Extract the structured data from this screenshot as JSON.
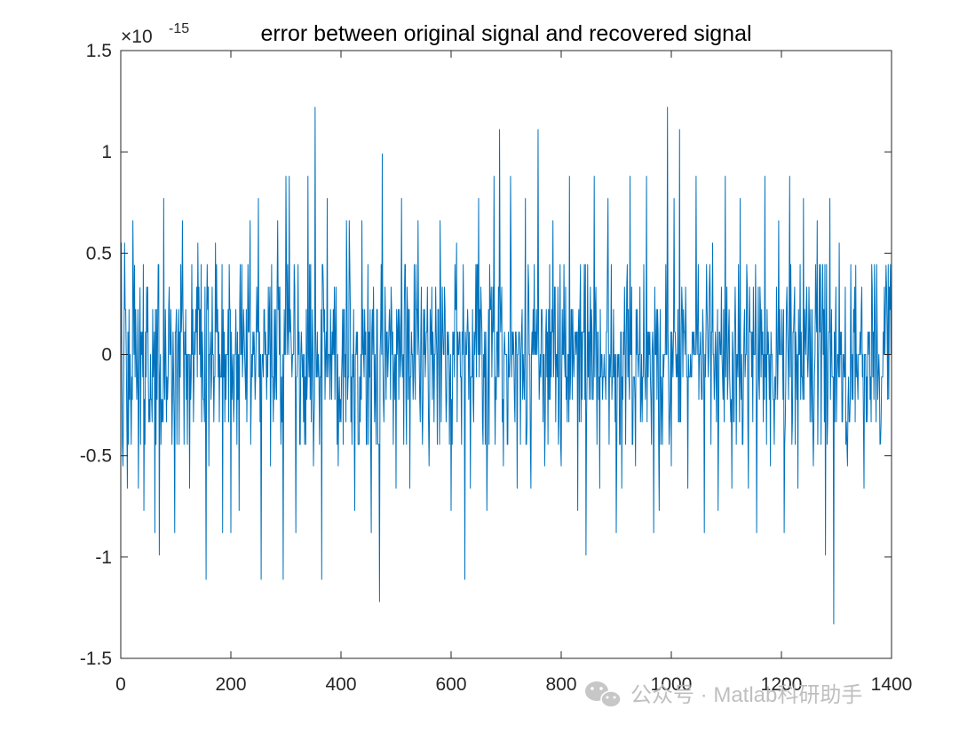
{
  "chart_data": {
    "type": "line",
    "title": "error between original signal and recovered signal",
    "xlabel": "",
    "ylabel": "",
    "xlim": [
      0,
      1400
    ],
    "ylim": [
      -1.5,
      1.5
    ],
    "y_exponent_label": "×10",
    "y_exponent_power": "-15",
    "x_ticks": [
      0,
      200,
      400,
      600,
      800,
      1000,
      1200,
      1400
    ],
    "x_tick_labels": [
      "0",
      "200",
      "400",
      "600",
      "800",
      "1000",
      "1200",
      "1400"
    ],
    "y_ticks": [
      -1.5,
      -1,
      -0.5,
      0,
      0.5,
      1,
      1.5
    ],
    "y_tick_labels": [
      "-1.5",
      "-1",
      "-0.5",
      "0",
      "0.5",
      "1",
      "1.5"
    ],
    "grid": false,
    "series": [
      {
        "color": "#0072BD",
        "seed": 20240517,
        "n_points": 1400,
        "quantum": 0.111,
        "spikes": [
          {
            "x": 1,
            "y": 0.55
          },
          {
            "x": 4,
            "y": -0.55
          },
          {
            "x": 7,
            "y": 0.55
          },
          {
            "x": 12,
            "y": -0.66
          },
          {
            "x": 22,
            "y": 0.66
          },
          {
            "x": 25,
            "y": 0.44
          },
          {
            "x": 32,
            "y": -0.66
          },
          {
            "x": 35,
            "y": 0.33
          },
          {
            "x": 42,
            "y": -0.77
          },
          {
            "x": 62,
            "y": -0.88
          },
          {
            "x": 70,
            "y": -0.99
          },
          {
            "x": 78,
            "y": 0.77
          },
          {
            "x": 98,
            "y": -0.88
          },
          {
            "x": 112,
            "y": 0.66
          },
          {
            "x": 125,
            "y": -0.66
          },
          {
            "x": 140,
            "y": 0.55
          },
          {
            "x": 155,
            "y": -1.11
          },
          {
            "x": 160,
            "y": -0.55
          },
          {
            "x": 172,
            "y": 0.55
          },
          {
            "x": 185,
            "y": -0.88
          },
          {
            "x": 200,
            "y": -0.88
          },
          {
            "x": 215,
            "y": -0.77
          },
          {
            "x": 235,
            "y": 0.66
          },
          {
            "x": 250,
            "y": 0.77
          },
          {
            "x": 255,
            "y": -1.11
          },
          {
            "x": 272,
            "y": -0.55
          },
          {
            "x": 285,
            "y": 0.66
          },
          {
            "x": 295,
            "y": -1.11
          },
          {
            "x": 300,
            "y": 0.88
          },
          {
            "x": 306,
            "y": 0.88
          },
          {
            "x": 318,
            "y": -0.88
          },
          {
            "x": 340,
            "y": 0.88
          },
          {
            "x": 350,
            "y": -0.55
          },
          {
            "x": 353,
            "y": 1.22
          },
          {
            "x": 365,
            "y": -1.11
          },
          {
            "x": 375,
            "y": 0.77
          },
          {
            "x": 395,
            "y": -0.55
          },
          {
            "x": 410,
            "y": 0.66
          },
          {
            "x": 415,
            "y": 0.66
          },
          {
            "x": 425,
            "y": -0.77
          },
          {
            "x": 438,
            "y": 0.66
          },
          {
            "x": 455,
            "y": -0.88
          },
          {
            "x": 470,
            "y": -1.22
          },
          {
            "x": 475,
            "y": 0.99
          },
          {
            "x": 500,
            "y": -0.66
          },
          {
            "x": 510,
            "y": 0.77
          },
          {
            "x": 525,
            "y": -0.66
          },
          {
            "x": 540,
            "y": 0.66
          },
          {
            "x": 560,
            "y": -0.55
          },
          {
            "x": 580,
            "y": 0.66
          },
          {
            "x": 600,
            "y": -0.77
          },
          {
            "x": 610,
            "y": 0.55
          },
          {
            "x": 625,
            "y": -1.11
          },
          {
            "x": 635,
            "y": -0.66
          },
          {
            "x": 650,
            "y": 0.77
          },
          {
            "x": 665,
            "y": -0.77
          },
          {
            "x": 678,
            "y": 0.88
          },
          {
            "x": 688,
            "y": 1.11
          },
          {
            "x": 695,
            "y": -0.55
          },
          {
            "x": 708,
            "y": 0.88
          },
          {
            "x": 720,
            "y": -0.66
          },
          {
            "x": 735,
            "y": 0.77
          },
          {
            "x": 745,
            "y": -0.66
          },
          {
            "x": 758,
            "y": 1.11
          },
          {
            "x": 770,
            "y": -0.55
          },
          {
            "x": 785,
            "y": 0.66
          },
          {
            "x": 800,
            "y": -0.55
          },
          {
            "x": 815,
            "y": 0.88
          },
          {
            "x": 830,
            "y": -0.77
          },
          {
            "x": 845,
            "y": -0.99
          },
          {
            "x": 860,
            "y": 0.88
          },
          {
            "x": 870,
            "y": -0.66
          },
          {
            "x": 885,
            "y": 0.77
          },
          {
            "x": 900,
            "y": -0.88
          },
          {
            "x": 910,
            "y": -0.66
          },
          {
            "x": 925,
            "y": 0.88
          },
          {
            "x": 935,
            "y": -0.55
          },
          {
            "x": 955,
            "y": 0.88
          },
          {
            "x": 968,
            "y": -0.88
          },
          {
            "x": 978,
            "y": -0.77
          },
          {
            "x": 993,
            "y": 1.22
          },
          {
            "x": 1000,
            "y": -0.55
          },
          {
            "x": 1005,
            "y": 0.77
          },
          {
            "x": 1015,
            "y": 1.11
          },
          {
            "x": 1030,
            "y": -0.66
          },
          {
            "x": 1045,
            "y": 0.88
          },
          {
            "x": 1060,
            "y": -0.88
          },
          {
            "x": 1075,
            "y": 0.55
          },
          {
            "x": 1085,
            "y": -0.77
          },
          {
            "x": 1098,
            "y": 0.88
          },
          {
            "x": 1110,
            "y": -0.66
          },
          {
            "x": 1125,
            "y": 0.77
          },
          {
            "x": 1140,
            "y": -0.66
          },
          {
            "x": 1155,
            "y": -0.88
          },
          {
            "x": 1170,
            "y": 0.88
          },
          {
            "x": 1180,
            "y": -0.55
          },
          {
            "x": 1195,
            "y": 0.66
          },
          {
            "x": 1205,
            "y": -0.88
          },
          {
            "x": 1215,
            "y": 0.88
          },
          {
            "x": 1230,
            "y": -0.66
          },
          {
            "x": 1240,
            "y": 0.77
          },
          {
            "x": 1258,
            "y": -0.55
          },
          {
            "x": 1265,
            "y": 0.66
          },
          {
            "x": 1280,
            "y": -0.99
          },
          {
            "x": 1288,
            "y": 0.77
          },
          {
            "x": 1295,
            "y": -1.33
          },
          {
            "x": 1305,
            "y": 0.55
          },
          {
            "x": 1320,
            "y": -0.55
          },
          {
            "x": 1335,
            "y": 0.44
          },
          {
            "x": 1350,
            "y": -0.66
          },
          {
            "x": 1365,
            "y": 0.33
          },
          {
            "x": 1380,
            "y": -0.44
          },
          {
            "x": 1390,
            "y": 0.44
          },
          {
            "x": 1395,
            "y": -0.22
          }
        ]
      }
    ]
  },
  "watermark": {
    "text": "公众号 · Matlab科研助手",
    "icon": "wechat-icon"
  }
}
